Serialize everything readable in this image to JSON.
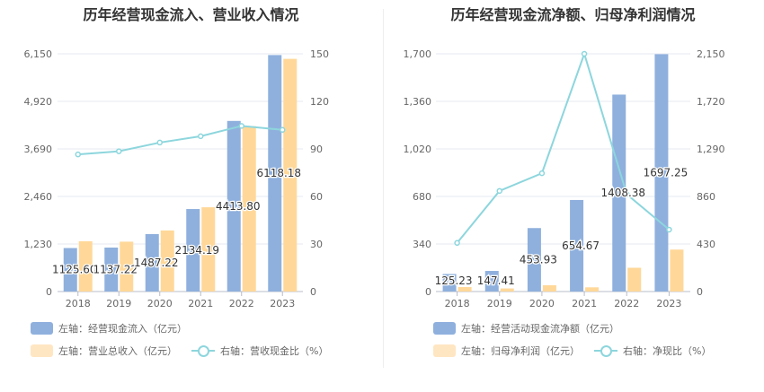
{
  "charts": [
    {
      "title": "历年经营现金流入、营业收入情况",
      "legend": {
        "bar1": "左轴：经营现金流入（亿元）",
        "bar2": "左轴：营业总收入（亿元）",
        "line": "右轴：营收现金比（%）"
      }
    },
    {
      "title": "历年经营现金流净额、归母净利润情况",
      "legend": {
        "bar1": "左轴：经营活动现金流净额（亿元）",
        "bar2": "左轴：归母净利润（亿元）",
        "line": "右轴：净现比（%）"
      }
    }
  ],
  "colors": {
    "bar1": "#8fb0dd",
    "bar2": "#ffd899",
    "line": "#8dd6dd",
    "grid": "#e6e9f2",
    "axis_text": "#666666"
  },
  "chart_data": [
    {
      "type": "bar",
      "title": "历年经营现金流入、营业收入情况",
      "categories": [
        "2018",
        "2019",
        "2020",
        "2021",
        "2022",
        "2023"
      ],
      "left_axis": {
        "ylim": [
          0,
          6150
        ],
        "ticks": [
          "0",
          "1,230",
          "2,460",
          "3,690",
          "4,920",
          "6,150"
        ]
      },
      "right_axis": {
        "ylim": [
          0,
          150
        ],
        "ticks": [
          "0",
          "30",
          "60",
          "90",
          "120",
          "150"
        ]
      },
      "series": [
        {
          "name": "左轴：经营现金流入（亿元）",
          "axis": "left",
          "kind": "bar",
          "values": [
            1125.6,
            1137.22,
            1487.22,
            2134.19,
            4413.8,
            6118.18
          ],
          "labels": [
            "1125.60",
            "1137.22",
            "1487.22",
            "2134.19",
            "4413.80",
            "6118.18"
          ]
        },
        {
          "name": "左轴：营业总收入（亿元）",
          "axis": "left",
          "kind": "bar",
          "values": [
            1300,
            1290,
            1580,
            2180,
            4280,
            6020
          ]
        },
        {
          "name": "右轴：营收现金比（%）",
          "axis": "right",
          "kind": "line",
          "values": [
            86.5,
            88.5,
            94,
            98,
            104.5,
            102
          ]
        }
      ],
      "grid": true,
      "legend_position": "bottom-left"
    },
    {
      "type": "bar",
      "title": "历年经营现金流净额、归母净利润情况",
      "categories": [
        "2018",
        "2019",
        "2020",
        "2021",
        "2022",
        "2023"
      ],
      "left_axis": {
        "ylim": [
          0,
          1700
        ],
        "ticks": [
          "0",
          "340",
          "680",
          "1,020",
          "1,360",
          "1,700"
        ]
      },
      "right_axis": {
        "ylim": [
          0,
          2150
        ],
        "ticks": [
          "0",
          "430",
          "860",
          "1,290",
          "1,720",
          "2,150"
        ]
      },
      "series": [
        {
          "name": "左轴：经营活动现金流净额（亿元）",
          "axis": "left",
          "kind": "bar",
          "values": [
            125.23,
            147.41,
            453.93,
            654.67,
            1408.38,
            1697.25
          ],
          "labels": [
            "125.23",
            "147.41",
            "453.93",
            "654.67",
            "1408.38",
            "1697.25"
          ]
        },
        {
          "name": "左轴：归母净利润（亿元）",
          "axis": "left",
          "kind": "bar",
          "values": [
            32,
            22,
            45,
            30,
            170,
            300
          ]
        },
        {
          "name": "右轴：净现比（%）",
          "axis": "right",
          "kind": "line",
          "values": [
            440,
            910,
            1070,
            2150,
            880,
            560
          ]
        }
      ],
      "grid": true,
      "legend_position": "bottom-left"
    }
  ]
}
